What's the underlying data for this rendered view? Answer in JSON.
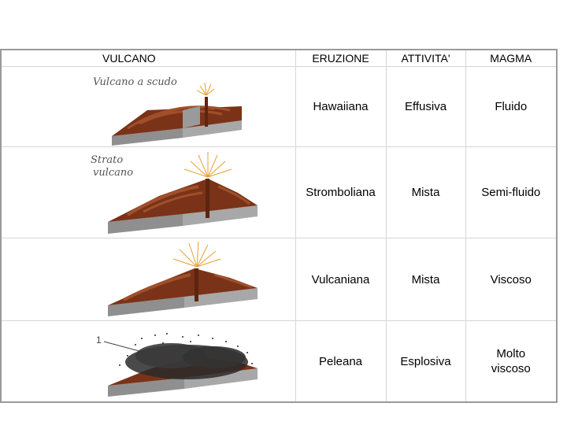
{
  "headers": {
    "vulcano": "VULCANO",
    "eruzione": "ERUZIONE",
    "attivita": "ATTIVITA'",
    "magma": "MAGMA"
  },
  "rows": [
    {
      "caption": "Vulcano a scudo",
      "eruzione": "Hawaiiana",
      "attivita": "Effusiva",
      "magma": "Fluido"
    },
    {
      "caption_line1": "Strato",
      "caption_line2": "vulcano",
      "eruzione": "Stromboliana",
      "attivita": "Mista",
      "magma": "Semi-fluido"
    },
    {
      "eruzione": "Vulcaniana",
      "attivita": "Mista",
      "magma": "Viscoso"
    },
    {
      "label_number": "1",
      "eruzione": "Peleana",
      "attivita": "Esplosiva",
      "magma_line1": "Molto",
      "magma_line2": "viscoso"
    }
  ],
  "colors": {
    "rock": "#8a3b1e",
    "rock_dark": "#5e2410",
    "slab": "#8f8f8f",
    "fire": "#e8a030",
    "ash": "#2a2a2a"
  }
}
